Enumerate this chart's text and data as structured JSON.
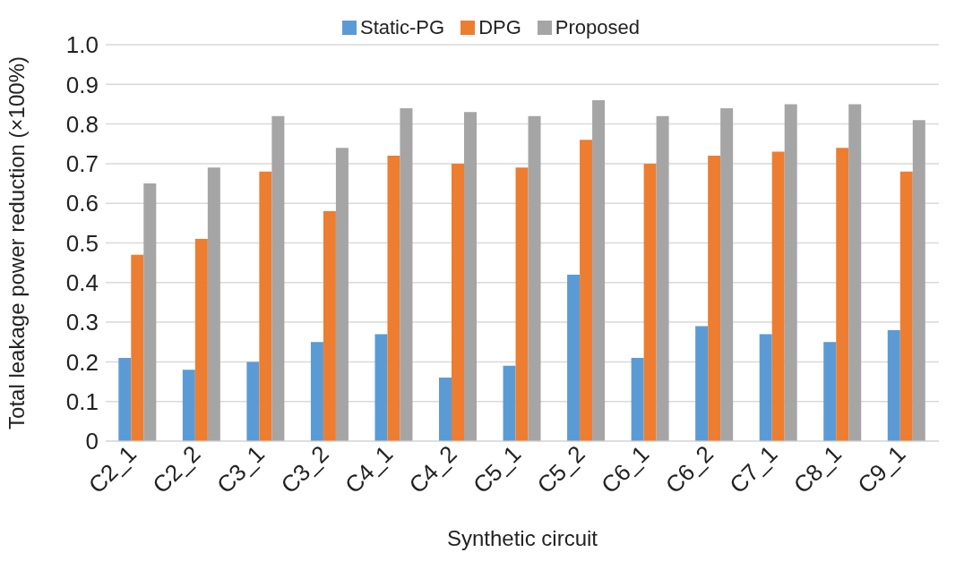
{
  "chart_data": {
    "type": "bar",
    "xlabel": "Synthetic circuit",
    "ylabel": "Total leakage power reduction (×100%)",
    "categories": [
      "C2_1",
      "C2_2",
      "C3_1",
      "C3_2",
      "C4_1",
      "C4_2",
      "C5_1",
      "C5_2",
      "C6_1",
      "C6_2",
      "C7_1",
      "C8_1",
      "C9_1"
    ],
    "series": [
      {
        "name": "Static-PG",
        "color": "#5b9bd5",
        "values": [
          0.21,
          0.18,
          0.2,
          0.25,
          0.27,
          0.16,
          0.19,
          0.42,
          0.21,
          0.29,
          0.27,
          0.25,
          0.28
        ]
      },
      {
        "name": "DPG",
        "color": "#ed7d31",
        "values": [
          0.47,
          0.51,
          0.68,
          0.58,
          0.72,
          0.7,
          0.69,
          0.76,
          0.7,
          0.72,
          0.73,
          0.74,
          0.68
        ]
      },
      {
        "name": "Proposed",
        "color": "#a5a5a5",
        "values": [
          0.65,
          0.69,
          0.82,
          0.74,
          0.84,
          0.83,
          0.82,
          0.86,
          0.82,
          0.84,
          0.85,
          0.85,
          0.81
        ]
      }
    ],
    "ylim": [
      0,
      1
    ],
    "yticks": [
      0,
      {
        "value": 0.1,
        "label": "0.1"
      },
      {
        "value": 0.2,
        "label": "0.2"
      },
      {
        "value": 0.3,
        "label": "0.3"
      },
      {
        "value": 0.4,
        "label": "0.4"
      },
      {
        "value": 0.5,
        "label": "0.5"
      },
      {
        "value": 0.6,
        "label": "0.6"
      },
      {
        "value": 0.7,
        "label": "0.7"
      },
      {
        "value": 0.8,
        "label": "0.8"
      },
      {
        "value": 0.9,
        "label": "0.9"
      },
      {
        "value": 1,
        "label": "1.0"
      }
    ],
    "grid": "y",
    "legend": "top"
  }
}
